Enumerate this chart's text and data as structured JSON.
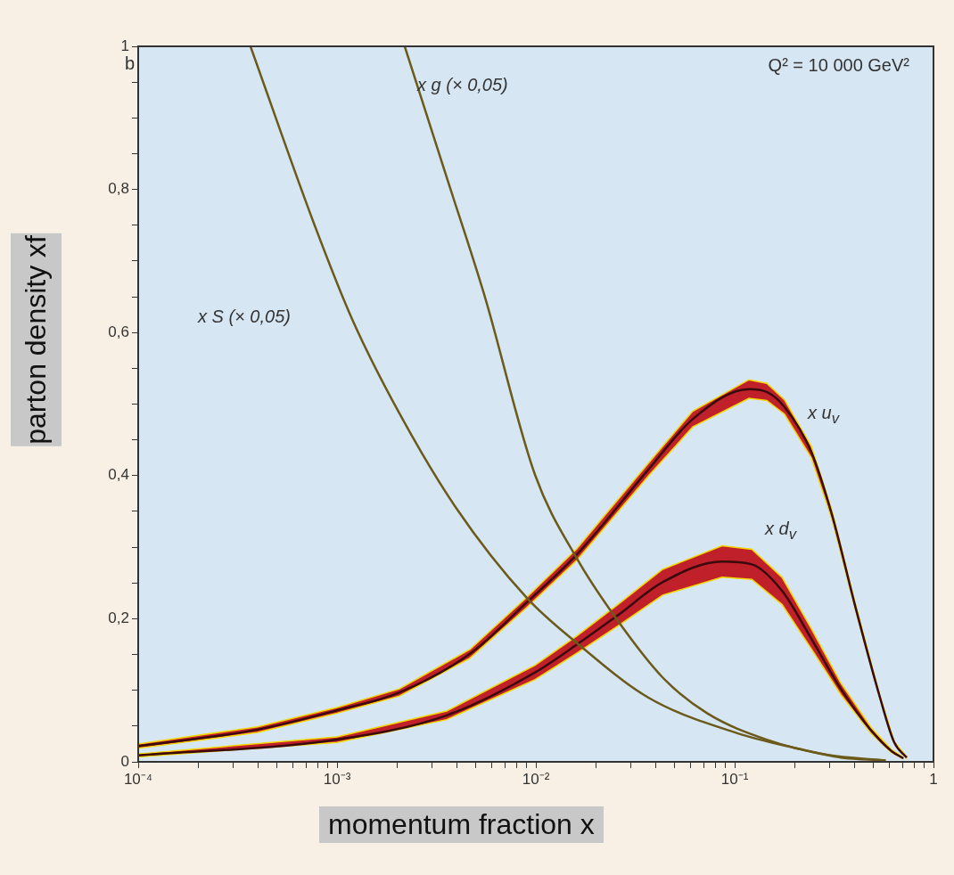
{
  "chart_data": {
    "type": "line",
    "xlabel": "momentum fraction x",
    "ylabel": "parton density xf",
    "log": "x",
    "marker": "none",
    "line_style": "solid",
    "grid": false,
    "legend": false,
    "xlim": [
      0.0001,
      1
    ],
    "ylim": [
      0,
      1
    ],
    "xticks": [
      {
        "value": 0.0001,
        "label": "10⁻⁴"
      },
      {
        "value": 0.0002,
        "label": null
      },
      {
        "value": 0.0003,
        "label": null
      },
      {
        "value": 0.0004,
        "label": null
      },
      {
        "value": 0.0005,
        "label": null
      },
      {
        "value": 0.0006,
        "label": null
      },
      {
        "value": 0.0007,
        "label": null
      },
      {
        "value": 0.0008,
        "label": null
      },
      {
        "value": 0.0009,
        "label": null
      },
      {
        "value": 0.001,
        "label": "10⁻³"
      },
      {
        "value": 0.002,
        "label": null
      },
      {
        "value": 0.003,
        "label": null
      },
      {
        "value": 0.004,
        "label": null
      },
      {
        "value": 0.005,
        "label": null
      },
      {
        "value": 0.006,
        "label": null
      },
      {
        "value": 0.007,
        "label": null
      },
      {
        "value": 0.008,
        "label": null
      },
      {
        "value": 0.009,
        "label": null
      },
      {
        "value": 0.01,
        "label": "10⁻²"
      },
      {
        "value": 0.02,
        "label": null
      },
      {
        "value": 0.03,
        "label": null
      },
      {
        "value": 0.04,
        "label": null
      },
      {
        "value": 0.05,
        "label": null
      },
      {
        "value": 0.06,
        "label": null
      },
      {
        "value": 0.07,
        "label": null
      },
      {
        "value": 0.08,
        "label": null
      },
      {
        "value": 0.09,
        "label": null
      },
      {
        "value": 0.1,
        "label": "10⁻¹"
      },
      {
        "value": 0.2,
        "label": null
      },
      {
        "value": 0.3,
        "label": null
      },
      {
        "value": 0.4,
        "label": null
      },
      {
        "value": 0.5,
        "label": null
      },
      {
        "value": 0.6,
        "label": null
      },
      {
        "value": 0.7,
        "label": null
      },
      {
        "value": 0.8,
        "label": null
      },
      {
        "value": 0.9,
        "label": null
      },
      1
    ],
    "yticks": [
      0,
      {
        "value": 0.05,
        "label": null
      },
      {
        "value": 0.1,
        "label": null
      },
      {
        "value": 0.15,
        "label": null
      },
      {
        "value": 0.2,
        "label": "0,2"
      },
      {
        "value": 0.25,
        "label": null
      },
      {
        "value": 0.3,
        "label": null
      },
      {
        "value": 0.35,
        "label": null
      },
      {
        "value": 0.4,
        "label": "0,4"
      },
      {
        "value": 0.45,
        "label": null
      },
      {
        "value": 0.5,
        "label": null
      },
      {
        "value": 0.55,
        "label": null
      },
      {
        "value": 0.6,
        "label": "0,6"
      },
      {
        "value": 0.65,
        "label": null
      },
      {
        "value": 0.7,
        "label": null
      },
      {
        "value": 0.75,
        "label": null
      },
      {
        "value": 0.8,
        "label": "0,8"
      },
      {
        "value": 0.85,
        "label": null
      },
      {
        "value": 0.9,
        "label": null
      },
      {
        "value": 0.95,
        "label": null
      },
      1
    ],
    "series": [
      {
        "color": "#6b5a1a",
        "x": [
          0.000367,
          0.000769,
          0.00119,
          0.00206,
          0.00397,
          0.00902,
          0.0161,
          0.0367,
          0.103,
          0.204,
          0.342,
          0.575
        ],
        "values": [
          1.0,
          0.751,
          0.619,
          0.487,
          0.355,
          0.229,
          0.166,
          0.09,
          0.04,
          0.019,
          0.006,
          0.002
        ]
      },
      {
        "color": "#6b5a1a",
        "x": [
          0.00219,
          0.00356,
          0.0055,
          0.00991,
          0.0161,
          0.0251,
          0.0434,
          0.0726,
          0.145,
          0.29,
          0.575
        ],
        "values": [
          1.0,
          0.817,
          0.653,
          0.401,
          0.284,
          0.202,
          0.118,
          0.068,
          0.031,
          0.01,
          0.002
        ]
      },
      {
        "color": "#3a0a0d",
        "x": [
          0.0001,
          0.000398,
          0.001,
          0.00206,
          0.00466,
          0.00902,
          0.0161,
          0.0367,
          0.0615,
          0.118,
          0.145,
          0.178,
          0.243,
          0.308,
          0.407,
          0.538,
          0.635,
          0.733
        ],
        "values": [
          0.022,
          0.045,
          0.072,
          0.097,
          0.151,
          0.223,
          0.29,
          0.408,
          0.479,
          0.521,
          0.517,
          0.496,
          0.433,
          0.346,
          0.214,
          0.09,
          0.027,
          0.006
        ],
        "lower": [
          0.019,
          0.041,
          0.068,
          0.092,
          0.145,
          0.216,
          0.282,
          0.399,
          0.468,
          0.508,
          0.505,
          0.486,
          0.425,
          0.34,
          0.21,
          0.088,
          0.026,
          0.005
        ],
        "upper": [
          0.025,
          0.049,
          0.076,
          0.102,
          0.157,
          0.23,
          0.298,
          0.417,
          0.49,
          0.534,
          0.529,
          0.506,
          0.441,
          0.352,
          0.218,
          0.092,
          0.028,
          0.007
        ]
      },
      {
        "color": "#3a0a0d",
        "x": [
          0.0001,
          0.001,
          0.00356,
          0.00991,
          0.0161,
          0.0259,
          0.0434,
          0.0865,
          0.122,
          0.173,
          0.243,
          0.342,
          0.485,
          0.615,
          0.705
        ],
        "values": [
          0.009,
          0.031,
          0.065,
          0.125,
          0.164,
          0.205,
          0.251,
          0.28,
          0.276,
          0.239,
          0.172,
          0.102,
          0.044,
          0.015,
          0.005
        ],
        "lower": [
          0.007,
          0.027,
          0.059,
          0.115,
          0.152,
          0.19,
          0.233,
          0.258,
          0.255,
          0.22,
          0.158,
          0.094,
          0.04,
          0.013,
          0.004
        ],
        "upper": [
          0.011,
          0.035,
          0.071,
          0.135,
          0.176,
          0.22,
          0.269,
          0.302,
          0.297,
          0.258,
          0.186,
          0.11,
          0.048,
          0.017,
          0.006
        ]
      }
    ],
    "annotations": [
      "b",
      "Q² = 10 000 GeV²",
      "x S (× 0,05)",
      "x g (× 0,05)",
      "x u$_{v}$",
      "x d$_{v}$"
    ]
  }
}
